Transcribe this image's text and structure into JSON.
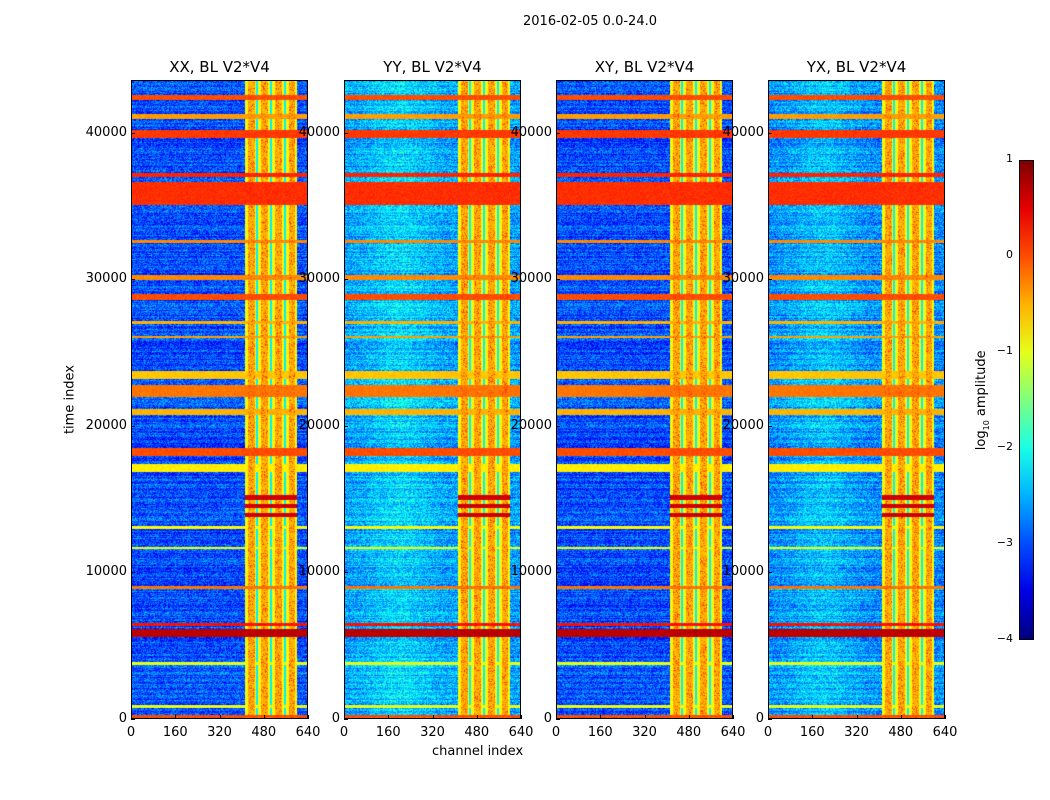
{
  "suptitle": "2016-02-05 0.0-24.0",
  "chart_data": {
    "type": "heatmap",
    "title": "2016-02-05 0.0-24.0",
    "xlabel": "channel index",
    "ylabel": "time index",
    "xlim": [
      0,
      640
    ],
    "ylim": [
      0,
      43600
    ],
    "xticks": [
      "0",
      "160",
      "320",
      "480",
      "640"
    ],
    "yticks": [
      "0",
      "10000",
      "20000",
      "30000",
      "40000"
    ],
    "xtick_values": [
      0,
      160,
      320,
      480,
      640
    ],
    "ytick_values": [
      0,
      10000,
      20000,
      30000,
      40000
    ],
    "colormap": "jet",
    "colorbar": {
      "label": "log10 amplitude",
      "label_main": "log",
      "label_sub": "10",
      "label_rest": " amplitude",
      "range": [
        -4,
        1
      ],
      "ticks": [
        "1",
        "0",
        "−1",
        "−2",
        "−3",
        "−4"
      ],
      "tick_values": [
        1,
        0,
        -1,
        -2,
        -3,
        -4
      ]
    },
    "panels": [
      {
        "title": "XX, BL V2*V4",
        "background": -3.0
      },
      {
        "title": "YY, BL V2*V4",
        "background": -2.6
      },
      {
        "title": "XY, BL V2*V4",
        "background": -3.0
      },
      {
        "title": "YX, BL V2*V4",
        "background": -2.7
      }
    ],
    "rfi_channel_band": {
      "range": [
        410,
        600
      ],
      "level": -0.9,
      "bright_channels": [
        [
          420,
          445
        ],
        [
          470,
          495
        ],
        [
          520,
          545
        ],
        [
          570,
          590
        ]
      ],
      "gap_channels": [
        455,
        505,
        555
      ]
    },
    "rfi_time_bands": [
      {
        "range": [
          42300,
          42600
        ],
        "level": 0.0
      },
      {
        "range": [
          41000,
          41300
        ],
        "level": -0.4
      },
      {
        "range": [
          39700,
          40200
        ],
        "level": 0.1
      },
      {
        "range": [
          37000,
          37300
        ],
        "level": 0.2
      },
      {
        "range": [
          35100,
          36700
        ],
        "level": 0.15
      },
      {
        "range": [
          32500,
          32700
        ],
        "level": -0.3
      },
      {
        "range": [
          30000,
          30300
        ],
        "level": -0.3
      },
      {
        "range": [
          28600,
          29000
        ],
        "level": 0.0
      },
      {
        "range": [
          27000,
          27200
        ],
        "level": -0.5
      },
      {
        "range": [
          26000,
          26200
        ],
        "level": -0.4
      },
      {
        "range": [
          23200,
          23800
        ],
        "level": -0.6
      },
      {
        "range": [
          22000,
          22800
        ],
        "level": -0.2
      },
      {
        "range": [
          20800,
          21200
        ],
        "level": -0.5
      },
      {
        "range": [
          18000,
          18500
        ],
        "level": 0.0
      },
      {
        "range": [
          16900,
          17400
        ],
        "level": -0.8
      },
      {
        "range": [
          13000,
          13200
        ],
        "level": -0.9
      },
      {
        "range": [
          11600,
          11800
        ],
        "level": -0.9
      },
      {
        "range": [
          8900,
          9100
        ],
        "level": -0.2
      },
      {
        "range": [
          6400,
          6600
        ],
        "level": 0.3
      },
      {
        "range": [
          5600,
          6200
        ],
        "level": 0.7
      },
      {
        "range": [
          3700,
          3900
        ],
        "level": -1.0
      },
      {
        "range": [
          800,
          1000
        ],
        "level": -1.0
      },
      {
        "range": [
          100,
          300
        ],
        "level": 0.0
      }
    ],
    "rfi_channel_time_blobs": [
      {
        "channels": [
          410,
          600
        ],
        "times": [
          13800,
          15400
        ],
        "level": 0.6
      }
    ]
  }
}
